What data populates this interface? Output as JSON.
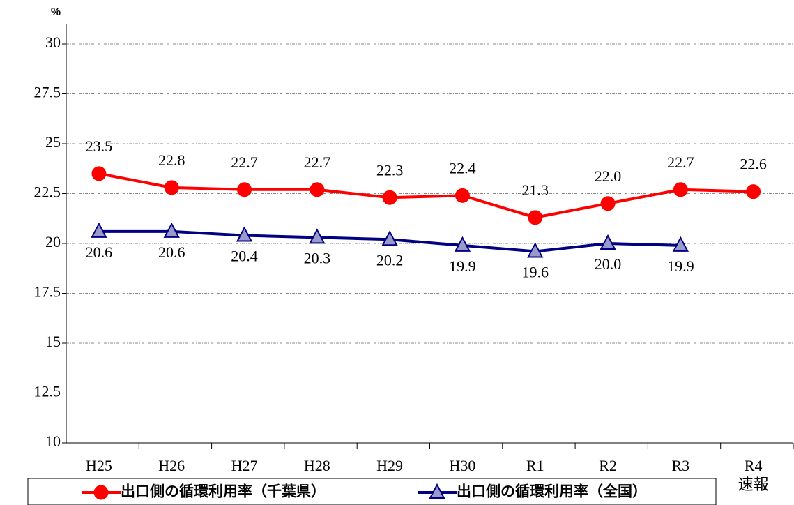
{
  "chart_data": {
    "type": "line",
    "y_label": "%",
    "categories": [
      "H25",
      "H26",
      "H27",
      "H28",
      "H29",
      "H30",
      "R1",
      "R2",
      "R3",
      "R4\n速報"
    ],
    "series": [
      {
        "name": "出口側の循環利用率（千葉県）",
        "color": "#ff0000",
        "marker": "circle",
        "marker_fill": "#ff0000",
        "values": [
          23.5,
          22.8,
          22.7,
          22.7,
          22.3,
          22.4,
          21.3,
          22.0,
          22.7,
          22.6
        ],
        "value_labels": [
          "23.5",
          "22.8",
          "22.7",
          "22.7",
          "22.3",
          "22.4",
          "21.3",
          "22.0",
          "22.7",
          "22.6"
        ],
        "label_position": "above"
      },
      {
        "name": "出口側の循環利用率（全国）",
        "color": "#000080",
        "marker": "triangle",
        "marker_fill": "#9999cc",
        "values": [
          20.6,
          20.6,
          20.4,
          20.3,
          20.2,
          19.9,
          19.6,
          20.0,
          19.9,
          null
        ],
        "value_labels": [
          "20.6",
          "20.6",
          "20.4",
          "20.3",
          "20.2",
          "19.9",
          "19.6",
          "20.0",
          "19.9",
          null
        ],
        "label_position": "below"
      }
    ],
    "ylim": [
      10,
      31
    ],
    "yticks": [
      10,
      12.5,
      15,
      17.5,
      20,
      22.5,
      25,
      27.5,
      30
    ],
    "grid": true,
    "legend": "bottom"
  }
}
